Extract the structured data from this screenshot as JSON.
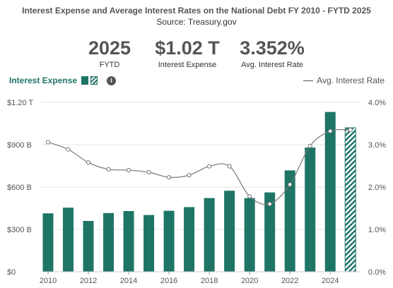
{
  "title": "Interest Expense and Average Interest Rates on the National Debt FY 2010 - FYTD 2025",
  "subtitle": "Source: Treasury.gov",
  "kpis": {
    "year": {
      "value": "2025",
      "label": "FYTD"
    },
    "expense": {
      "value": "$1.02 T",
      "label": "Interest Expense"
    },
    "rate": {
      "value": "3.352%",
      "label": "Avg. Interest Rate"
    }
  },
  "legend": {
    "left_label": "Interest Expense",
    "info_icon": "i",
    "right_label": "Avg. Interest Rate"
  },
  "colors": {
    "bar": "#1e7566",
    "line": "#777777",
    "grid": "#e6e6e6",
    "axis_text": "#555555"
  },
  "chart_data": {
    "type": "bar",
    "x": [
      2010,
      2011,
      2012,
      2013,
      2014,
      2015,
      2016,
      2017,
      2018,
      2019,
      2020,
      2021,
      2022,
      2023,
      2024,
      2025
    ],
    "series": [
      {
        "name": "Interest Expense",
        "unit": "B",
        "axis": "left",
        "values": [
          414,
          454,
          360,
          416,
          430,
          402,
          432,
          458,
          522,
          574,
          522,
          562,
          718,
          880,
          1132,
          1020
        ],
        "partial_last": true
      },
      {
        "name": "Avg. Interest Rate",
        "unit": "%",
        "axis": "right",
        "type": "line",
        "values": [
          3.06,
          2.89,
          2.58,
          2.42,
          2.4,
          2.35,
          2.23,
          2.28,
          2.49,
          2.49,
          1.78,
          1.6,
          2.06,
          2.97,
          3.32,
          3.352
        ]
      }
    ],
    "y_left": {
      "ylim": [
        0,
        1200
      ],
      "ticks": [
        "$0",
        "$300 B",
        "$600 B",
        "$900 B",
        "$1.20 T"
      ],
      "tick_values": [
        0,
        300,
        600,
        900,
        1200
      ]
    },
    "y_right": {
      "ylim": [
        0,
        4
      ],
      "ticks": [
        "0.0%",
        "1.0%",
        "2.0%",
        "3.0%",
        "4.0%"
      ],
      "tick_values": [
        0,
        1,
        2,
        3,
        4
      ]
    },
    "x_ticks": [
      "2010",
      "2012",
      "2014",
      "2016",
      "2018",
      "2020",
      "2022",
      "2024"
    ],
    "x_tick_values": [
      2010,
      2012,
      2014,
      2016,
      2018,
      2020,
      2022,
      2024
    ],
    "grid": true
  }
}
